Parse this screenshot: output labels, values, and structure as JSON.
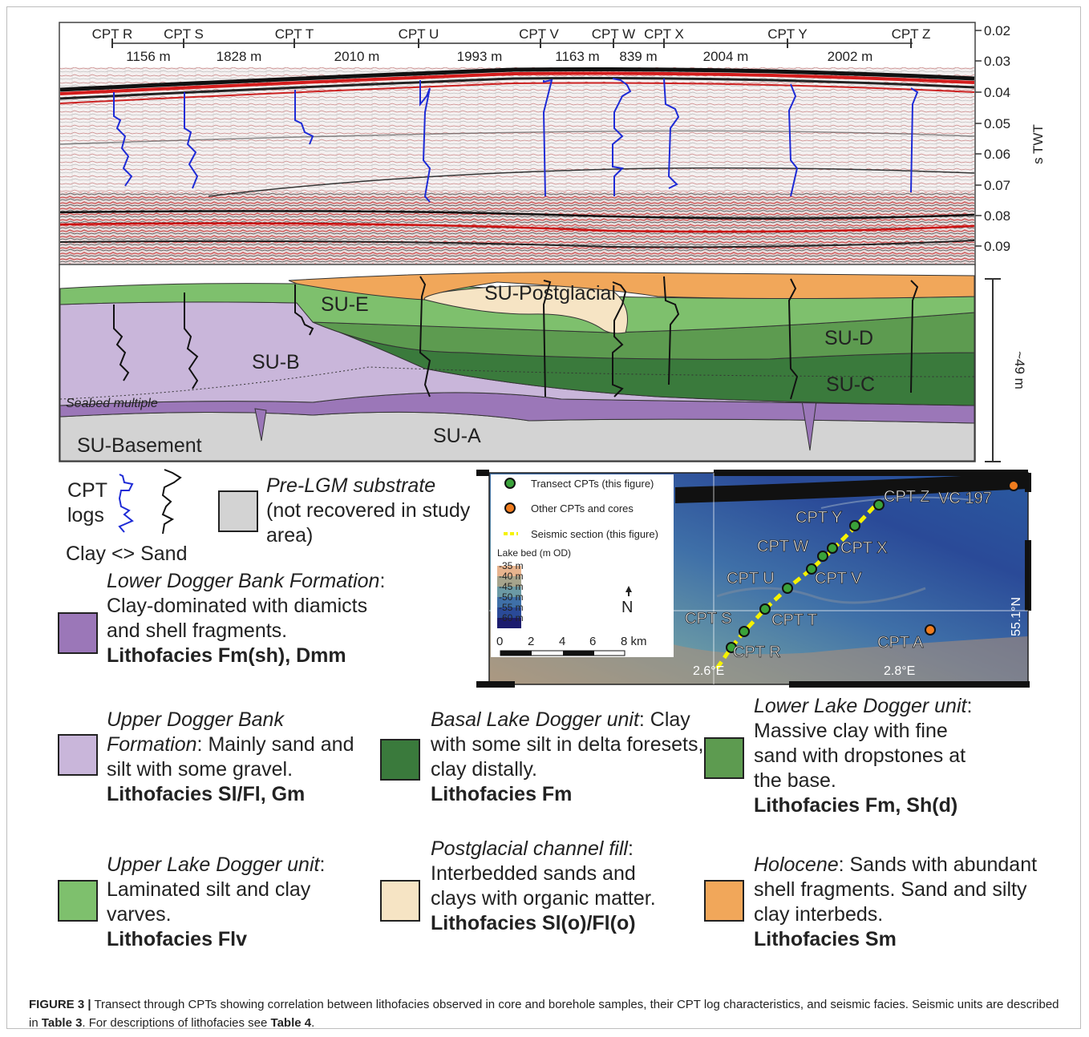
{
  "seismic": {
    "cpts": [
      {
        "label": "CPT R"
      },
      {
        "label": "CPT S"
      },
      {
        "label": "CPT T"
      },
      {
        "label": "CPT U"
      },
      {
        "label": "CPT V"
      },
      {
        "label": "CPT W"
      },
      {
        "label": "CPT X"
      },
      {
        "label": "CPT Y"
      },
      {
        "label": "CPT Z"
      }
    ],
    "distances": [
      "1156 m",
      "1828 m",
      "2010 m",
      "1993 m",
      "1163 m",
      "839 m",
      "2004 m",
      "2002 m"
    ],
    "axis_ticks": [
      "0.02",
      "0.03",
      "0.04",
      "0.05",
      "0.06",
      "0.07",
      "0.08",
      "0.09"
    ],
    "axis_label": "s TWT"
  },
  "section": {
    "units": {
      "su_e": "SU-E",
      "su_postglacial": "SU-Postglacial",
      "su_b": "SU-B",
      "su_d": "SU-D",
      "su_c": "SU-C",
      "su_a": "SU-A",
      "su_basement": "SU-Basement",
      "seabed_multiple": "Seabed multiple"
    },
    "scale_label": "~49 m"
  },
  "legend": {
    "cpt_logs": {
      "line1": "CPT",
      "line2": "logs",
      "clay_sand": "Clay <> Sand"
    },
    "pre_lgm": {
      "title": "Pre-LGM substrate",
      "desc": "(not recovered in study area)"
    },
    "units": [
      {
        "name": "Lower Dogger Bank Formation",
        "desc": ": Clay-dominated with diamicts and shell fragments.",
        "facies": "Lithofacies Fm(sh), Dmm",
        "color": "#9b77b8"
      },
      {
        "name": "Upper Dogger Bank Formation",
        "desc": ": Mainly sand and silt with some gravel.",
        "facies": "Lithofacies Sl/Fl, Gm",
        "color": "#c9b6da"
      },
      {
        "name": "Basal Lake Dogger unit",
        "desc": ": Clay with some silt in delta foresets, clay distally.",
        "facies": "Lithofacies Fm",
        "color": "#3a7a3c"
      },
      {
        "name": "Lower Lake Dogger unit",
        "desc": ": Massive clay with fine sand with dropstones at the base.",
        "facies": "Lithofacies Fm, Sh(d)",
        "color": "#5d9b50"
      },
      {
        "name": "Upper Lake Dogger unit",
        "desc": ": Laminated silt and clay varves.",
        "facies": "Lithofacies Flv",
        "color": "#7ec06d"
      },
      {
        "name": "Postglacial channel fill",
        "desc": ": Interbedded sands and clays with organic matter.",
        "facies": "Lithofacies Sl(o)/Fl(o)",
        "color": "#f6e4c4"
      },
      {
        "name": "Holocene",
        "desc": ": Sands with abundant shell fragments. Sand and silty clay interbeds.",
        "facies": "Lithofacies Sm",
        "color": "#f1a75a"
      }
    ]
  },
  "map": {
    "legend_items": [
      "Transect CPTs (this figure)",
      "Other CPTs and cores",
      "Seismic section (this figure)"
    ],
    "depth_title": "Lake bed (m OD)",
    "depths": [
      {
        "label": "-35 m",
        "color": "#e8b48e"
      },
      {
        "label": "-40 m",
        "color": "#a6a48c"
      },
      {
        "label": "-45 m",
        "color": "#6b9aa5"
      },
      {
        "label": "-50 m",
        "color": "#3f70a8"
      },
      {
        "label": "-55 m",
        "color": "#2a4a98"
      },
      {
        "label": "-60 m",
        "color": "#1c1c6e"
      }
    ],
    "scale_ticks": [
      "0",
      "2",
      "4",
      "6",
      "8 km"
    ],
    "north": "N",
    "labels": {
      "cpt_z": "CPT Z",
      "vc197": "VC 197",
      "cpt_y": "CPT Y",
      "cpt_w": "CPT W",
      "cpt_x": "CPT X",
      "cpt_u": "CPT U",
      "cpt_v": "CPT V",
      "cpt_s": "CPT S",
      "cpt_t": "CPT T",
      "cpt_r": "CPT R",
      "cpt_a": "CPT A"
    },
    "lon_left": "2.6°E",
    "lon_right": "2.8°E",
    "lat": "55.1°N",
    "colors": {
      "transect": "#3aa23a",
      "other": "#f07c1e",
      "seismic_line": "#f5f200"
    }
  },
  "caption": {
    "label": "FIGURE 3 |",
    "text1": " Transect through CPTs showing correlation between lithofacies observed in core and borehole samples, their CPT log characteristics, and seismic facies. Seismic units are described in ",
    "table3": "Table 3",
    "text2": ". For descriptions of lithofacies see ",
    "table4": "Table 4",
    "text3": "."
  }
}
